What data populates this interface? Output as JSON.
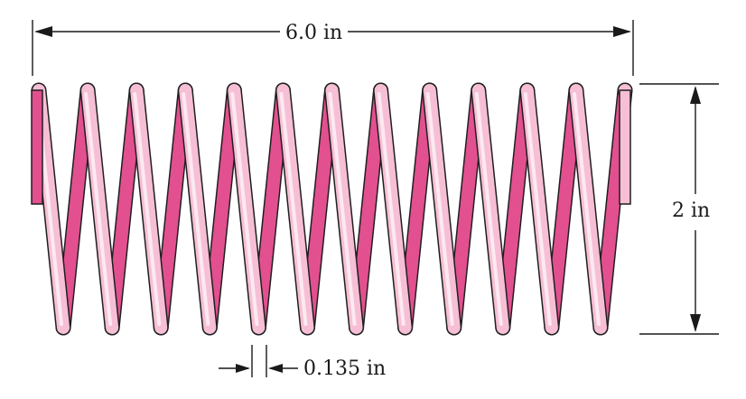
{
  "figure": {
    "subject": "helical coil spring",
    "turns": 13,
    "colors": {
      "coil_front": "#f6bfd5",
      "coil_highlight": "#fde9f1",
      "coil_back": "#e2508f",
      "outline": "#1f1f1f",
      "dimension_lines": "#1a1a1a"
    }
  },
  "dimensions": {
    "length": "6.0  in",
    "diameter": "2 in",
    "wire": "0.135 in"
  }
}
